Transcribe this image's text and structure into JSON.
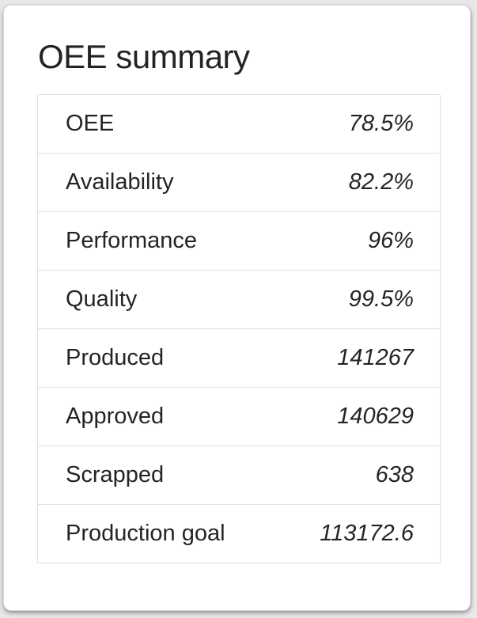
{
  "colors": {
    "page-bg": "#e8e8e8",
    "card-bg": "#ffffff",
    "card-border": "#d9d9d9",
    "table-border": "#e0e0e0",
    "text": "#252423"
  },
  "card": {
    "title": "OEE summary",
    "rows": [
      {
        "label": "OEE",
        "value": "78.5%"
      },
      {
        "label": "Availability",
        "value": "82.2%"
      },
      {
        "label": "Performance",
        "value": "96%"
      },
      {
        "label": "Quality",
        "value": "99.5%"
      },
      {
        "label": "Produced",
        "value": "141267"
      },
      {
        "label": "Approved",
        "value": "140629"
      },
      {
        "label": "Scrapped",
        "value": "638"
      },
      {
        "label": "Production goal",
        "value": "113172.6"
      }
    ]
  }
}
